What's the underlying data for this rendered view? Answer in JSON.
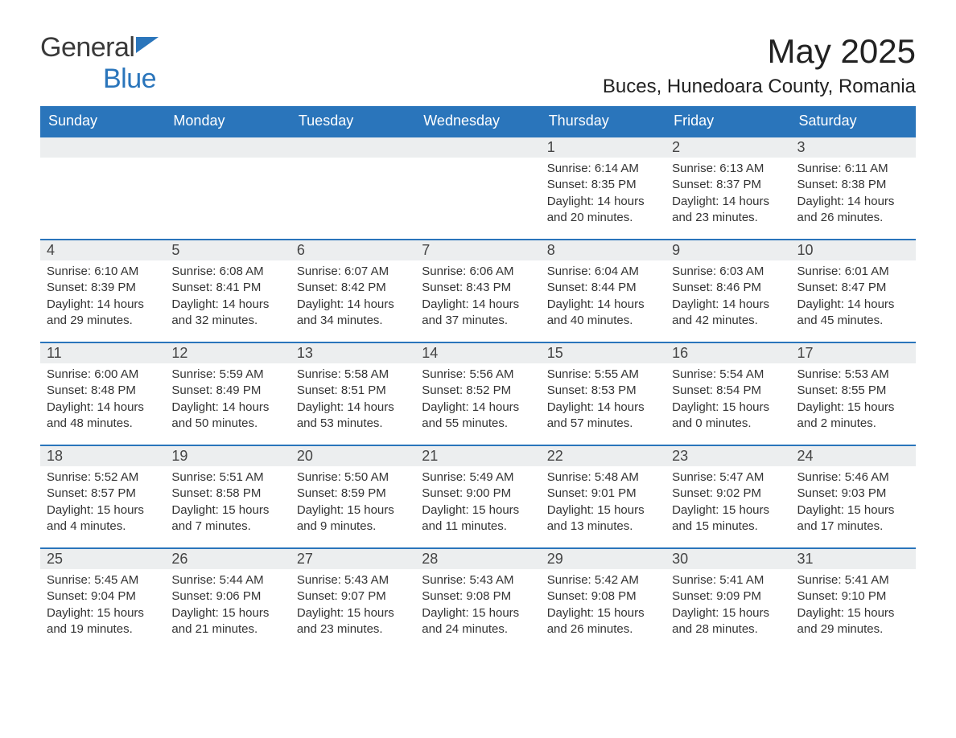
{
  "brand": {
    "general": "General",
    "blue": "Blue",
    "accent_color": "#2a75bb"
  },
  "header": {
    "month_title": "May 2025",
    "location": "Buces, Hunedoara County, Romania"
  },
  "calendar": {
    "day_headers": [
      "Sunday",
      "Monday",
      "Tuesday",
      "Wednesday",
      "Thursday",
      "Friday",
      "Saturday"
    ],
    "header_bg": "#2a75bb",
    "header_text_color": "#ffffff",
    "daynum_bg": "#eceeef",
    "cell_border_color": "#2a75bb",
    "weeks": [
      [
        null,
        null,
        null,
        null,
        {
          "day": "1",
          "sunrise": "Sunrise: 6:14 AM",
          "sunset": "Sunset: 8:35 PM",
          "daylight": "Daylight: 14 hours and 20 minutes."
        },
        {
          "day": "2",
          "sunrise": "Sunrise: 6:13 AM",
          "sunset": "Sunset: 8:37 PM",
          "daylight": "Daylight: 14 hours and 23 minutes."
        },
        {
          "day": "3",
          "sunrise": "Sunrise: 6:11 AM",
          "sunset": "Sunset: 8:38 PM",
          "daylight": "Daylight: 14 hours and 26 minutes."
        }
      ],
      [
        {
          "day": "4",
          "sunrise": "Sunrise: 6:10 AM",
          "sunset": "Sunset: 8:39 PM",
          "daylight": "Daylight: 14 hours and 29 minutes."
        },
        {
          "day": "5",
          "sunrise": "Sunrise: 6:08 AM",
          "sunset": "Sunset: 8:41 PM",
          "daylight": "Daylight: 14 hours and 32 minutes."
        },
        {
          "day": "6",
          "sunrise": "Sunrise: 6:07 AM",
          "sunset": "Sunset: 8:42 PM",
          "daylight": "Daylight: 14 hours and 34 minutes."
        },
        {
          "day": "7",
          "sunrise": "Sunrise: 6:06 AM",
          "sunset": "Sunset: 8:43 PM",
          "daylight": "Daylight: 14 hours and 37 minutes."
        },
        {
          "day": "8",
          "sunrise": "Sunrise: 6:04 AM",
          "sunset": "Sunset: 8:44 PM",
          "daylight": "Daylight: 14 hours and 40 minutes."
        },
        {
          "day": "9",
          "sunrise": "Sunrise: 6:03 AM",
          "sunset": "Sunset: 8:46 PM",
          "daylight": "Daylight: 14 hours and 42 minutes."
        },
        {
          "day": "10",
          "sunrise": "Sunrise: 6:01 AM",
          "sunset": "Sunset: 8:47 PM",
          "daylight": "Daylight: 14 hours and 45 minutes."
        }
      ],
      [
        {
          "day": "11",
          "sunrise": "Sunrise: 6:00 AM",
          "sunset": "Sunset: 8:48 PM",
          "daylight": "Daylight: 14 hours and 48 minutes."
        },
        {
          "day": "12",
          "sunrise": "Sunrise: 5:59 AM",
          "sunset": "Sunset: 8:49 PM",
          "daylight": "Daylight: 14 hours and 50 minutes."
        },
        {
          "day": "13",
          "sunrise": "Sunrise: 5:58 AM",
          "sunset": "Sunset: 8:51 PM",
          "daylight": "Daylight: 14 hours and 53 minutes."
        },
        {
          "day": "14",
          "sunrise": "Sunrise: 5:56 AM",
          "sunset": "Sunset: 8:52 PM",
          "daylight": "Daylight: 14 hours and 55 minutes."
        },
        {
          "day": "15",
          "sunrise": "Sunrise: 5:55 AM",
          "sunset": "Sunset: 8:53 PM",
          "daylight": "Daylight: 14 hours and 57 minutes."
        },
        {
          "day": "16",
          "sunrise": "Sunrise: 5:54 AM",
          "sunset": "Sunset: 8:54 PM",
          "daylight": "Daylight: 15 hours and 0 minutes."
        },
        {
          "day": "17",
          "sunrise": "Sunrise: 5:53 AM",
          "sunset": "Sunset: 8:55 PM",
          "daylight": "Daylight: 15 hours and 2 minutes."
        }
      ],
      [
        {
          "day": "18",
          "sunrise": "Sunrise: 5:52 AM",
          "sunset": "Sunset: 8:57 PM",
          "daylight": "Daylight: 15 hours and 4 minutes."
        },
        {
          "day": "19",
          "sunrise": "Sunrise: 5:51 AM",
          "sunset": "Sunset: 8:58 PM",
          "daylight": "Daylight: 15 hours and 7 minutes."
        },
        {
          "day": "20",
          "sunrise": "Sunrise: 5:50 AM",
          "sunset": "Sunset: 8:59 PM",
          "daylight": "Daylight: 15 hours and 9 minutes."
        },
        {
          "day": "21",
          "sunrise": "Sunrise: 5:49 AM",
          "sunset": "Sunset: 9:00 PM",
          "daylight": "Daylight: 15 hours and 11 minutes."
        },
        {
          "day": "22",
          "sunrise": "Sunrise: 5:48 AM",
          "sunset": "Sunset: 9:01 PM",
          "daylight": "Daylight: 15 hours and 13 minutes."
        },
        {
          "day": "23",
          "sunrise": "Sunrise: 5:47 AM",
          "sunset": "Sunset: 9:02 PM",
          "daylight": "Daylight: 15 hours and 15 minutes."
        },
        {
          "day": "24",
          "sunrise": "Sunrise: 5:46 AM",
          "sunset": "Sunset: 9:03 PM",
          "daylight": "Daylight: 15 hours and 17 minutes."
        }
      ],
      [
        {
          "day": "25",
          "sunrise": "Sunrise: 5:45 AM",
          "sunset": "Sunset: 9:04 PM",
          "daylight": "Daylight: 15 hours and 19 minutes."
        },
        {
          "day": "26",
          "sunrise": "Sunrise: 5:44 AM",
          "sunset": "Sunset: 9:06 PM",
          "daylight": "Daylight: 15 hours and 21 minutes."
        },
        {
          "day": "27",
          "sunrise": "Sunrise: 5:43 AM",
          "sunset": "Sunset: 9:07 PM",
          "daylight": "Daylight: 15 hours and 23 minutes."
        },
        {
          "day": "28",
          "sunrise": "Sunrise: 5:43 AM",
          "sunset": "Sunset: 9:08 PM",
          "daylight": "Daylight: 15 hours and 24 minutes."
        },
        {
          "day": "29",
          "sunrise": "Sunrise: 5:42 AM",
          "sunset": "Sunset: 9:08 PM",
          "daylight": "Daylight: 15 hours and 26 minutes."
        },
        {
          "day": "30",
          "sunrise": "Sunrise: 5:41 AM",
          "sunset": "Sunset: 9:09 PM",
          "daylight": "Daylight: 15 hours and 28 minutes."
        },
        {
          "day": "31",
          "sunrise": "Sunrise: 5:41 AM",
          "sunset": "Sunset: 9:10 PM",
          "daylight": "Daylight: 15 hours and 29 minutes."
        }
      ]
    ]
  }
}
